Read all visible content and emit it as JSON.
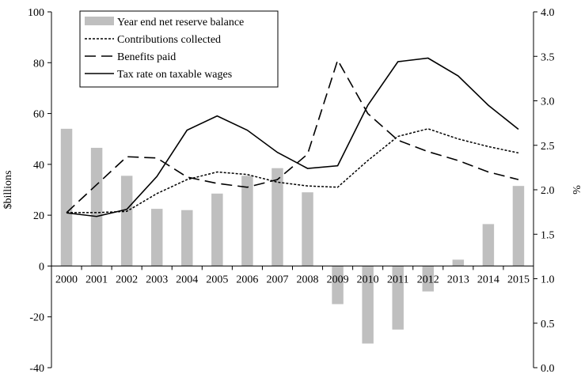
{
  "chart_data": {
    "type": "bar+line",
    "categories": [
      "2000",
      "2001",
      "2002",
      "2003",
      "2004",
      "2005",
      "2006",
      "2007",
      "2008",
      "2009",
      "2010",
      "2011",
      "2012",
      "2013",
      "2014",
      "2015"
    ],
    "y_left": {
      "label": "$billions",
      "ylim": [
        -40,
        100
      ],
      "ticks": [
        -40,
        -20,
        0,
        20,
        40,
        60,
        80,
        100
      ]
    },
    "y_right": {
      "label": "%",
      "ylim": [
        0.0,
        4.0
      ],
      "ticks": [
        "0.0",
        "0.5",
        "1.0",
        "1.5",
        "2.0",
        "2.5",
        "3.0",
        "3.5",
        "4.0"
      ]
    },
    "grid": false,
    "legend_position": "top-left",
    "series": [
      {
        "name": "Year end net reserve balance",
        "type": "bar",
        "axis": "left",
        "color": "#bfbfbf",
        "values": [
          54,
          46.5,
          35.5,
          22.5,
          22,
          28.5,
          35.5,
          38.5,
          29,
          -15,
          -30.5,
          -25,
          -10,
          2.5,
          16.5,
          31.5
        ]
      },
      {
        "name": "Contributions collected",
        "type": "line",
        "axis": "left",
        "dash": "dotted",
        "color": "#000000",
        "values": [
          21,
          21,
          21.5,
          28.5,
          34,
          37,
          36,
          33,
          31.5,
          31,
          41.5,
          51,
          54,
          50,
          47,
          44.5
        ]
      },
      {
        "name": "Benefits paid",
        "type": "line",
        "axis": "left",
        "dash": "dashed",
        "color": "#000000",
        "values": [
          21,
          32,
          43,
          42.5,
          35,
          32.5,
          31,
          34,
          44,
          81,
          60,
          49.5,
          45,
          41.5,
          37,
          34
        ]
      },
      {
        "name": "Tax rate on taxable wages",
        "type": "line",
        "axis": "right",
        "dash": "solid",
        "color": "#000000",
        "values": [
          1.74,
          1.7,
          1.78,
          2.15,
          2.67,
          2.83,
          2.67,
          2.42,
          2.24,
          2.27,
          2.95,
          3.44,
          3.48,
          3.28,
          2.95,
          2.68
        ]
      }
    ]
  }
}
